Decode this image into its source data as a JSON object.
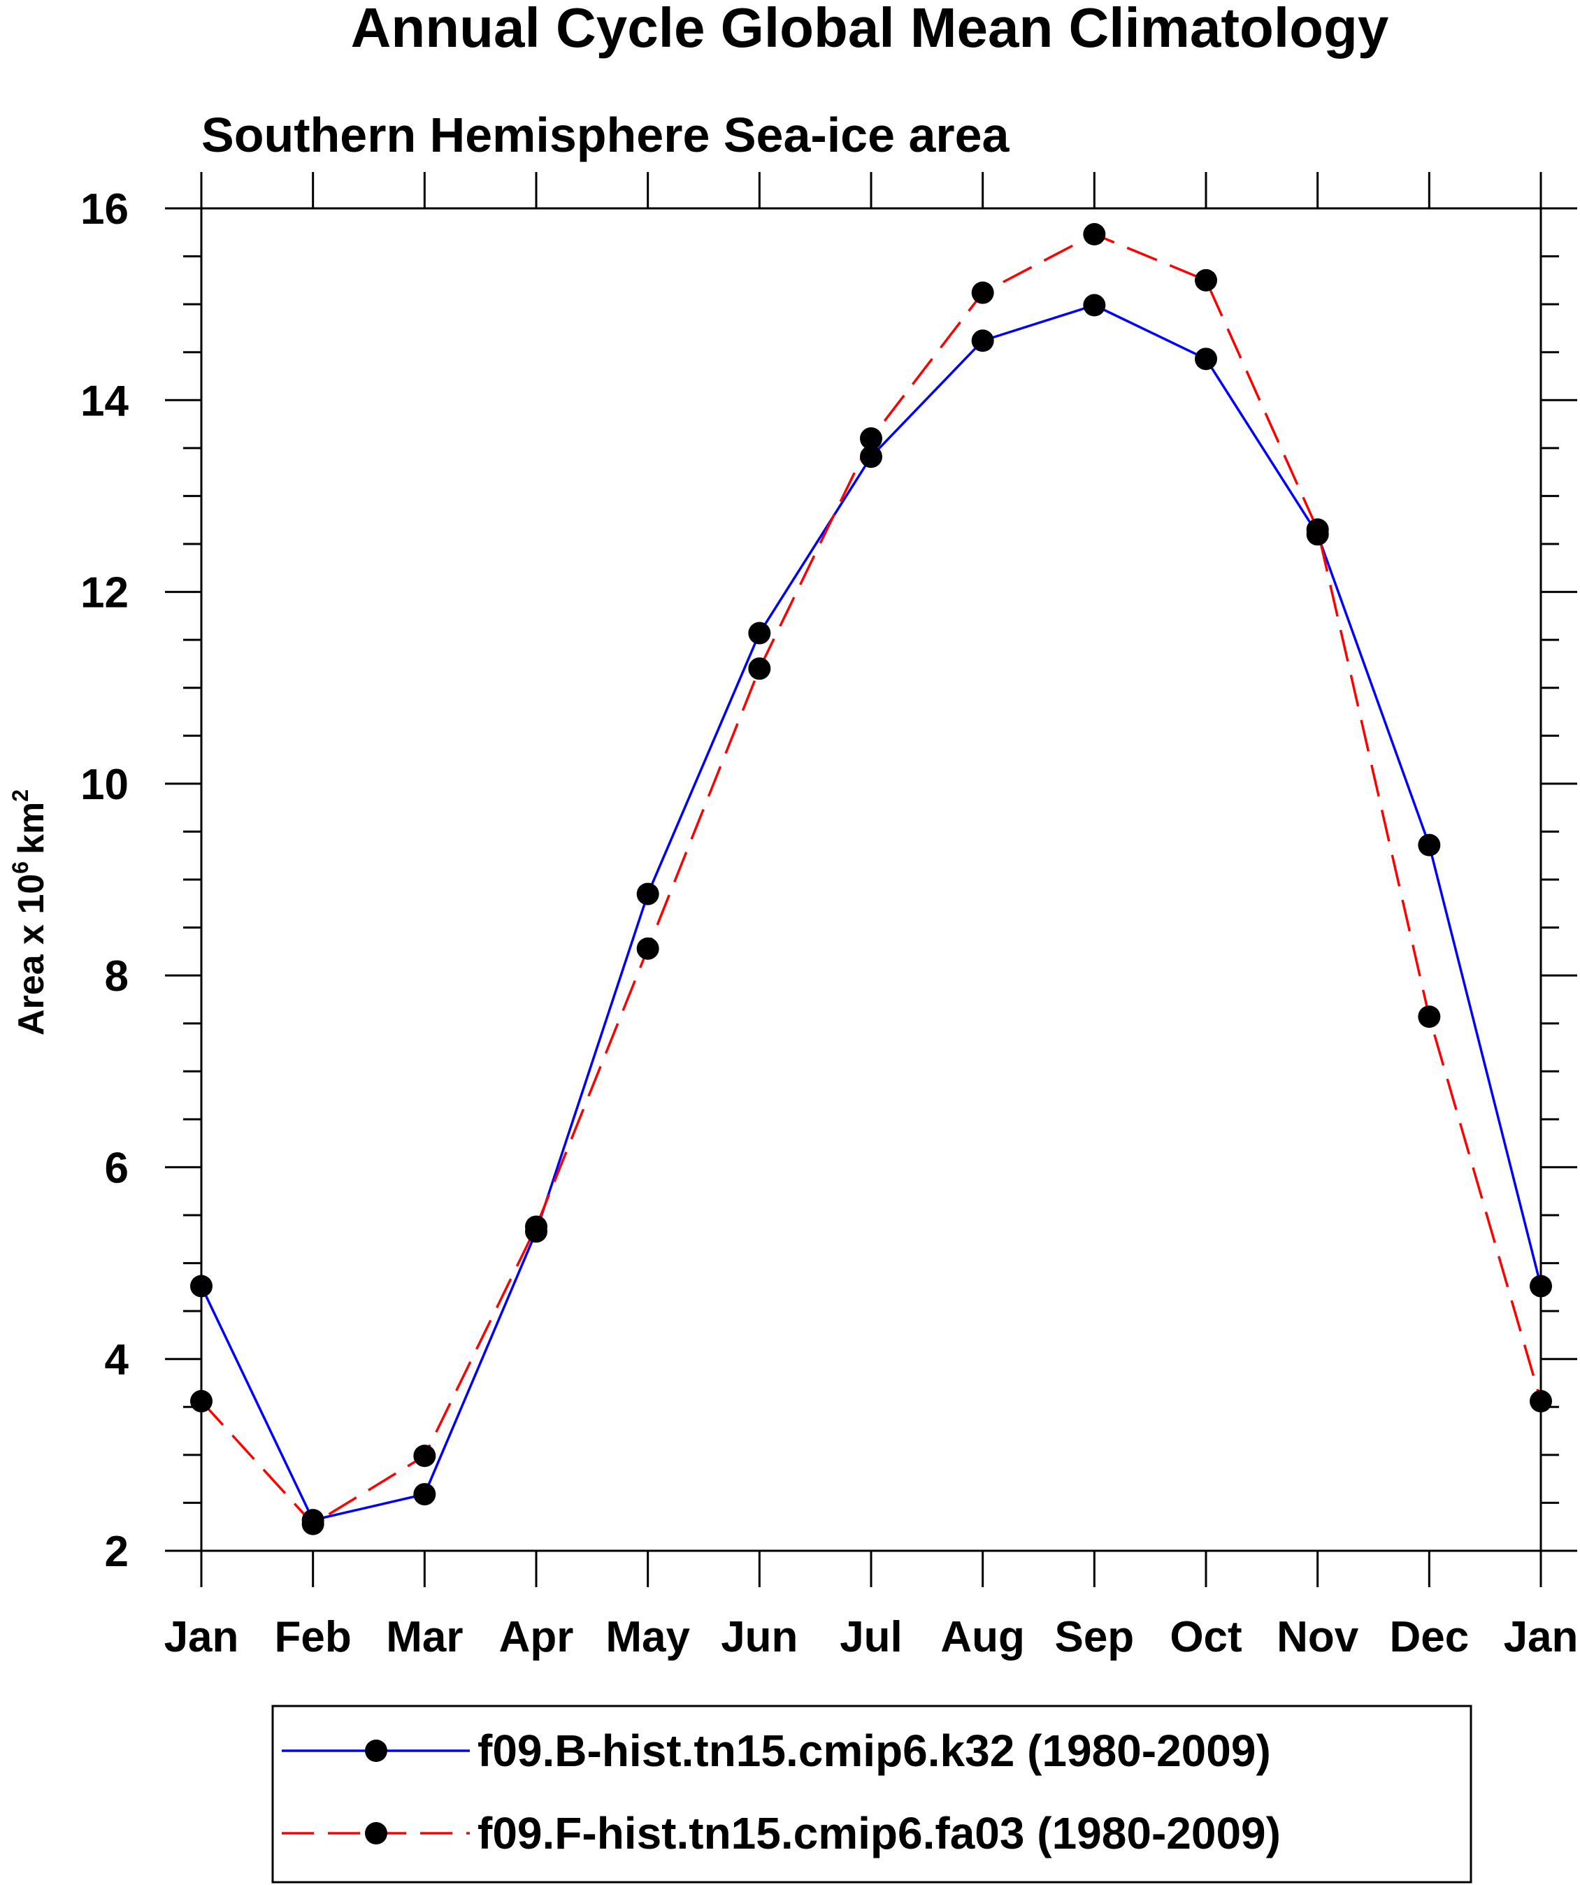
{
  "chart_data": {
    "type": "line",
    "title": "Annual Cycle Global Mean Climatology",
    "subtitle": "Southern Hemisphere Sea-ice area",
    "ylabel": "Area x 10",
    "ylabel_exponent": "6",
    "ylabel_unit": "km",
    "ylabel_unit_exponent": "2",
    "xlabel": "",
    "ylim": [
      2,
      16
    ],
    "yticks": [
      2,
      4,
      6,
      8,
      10,
      12,
      14,
      16
    ],
    "yminor_step": 0.5,
    "categories": [
      "Jan",
      "Feb",
      "Mar",
      "Apr",
      "May",
      "Jun",
      "Jul",
      "Aug",
      "Sep",
      "Oct",
      "Nov",
      "Dec",
      "Jan"
    ],
    "grid": false,
    "legend_position": "bottom",
    "series": [
      {
        "name": "f09.B-hist.tn15.cmip6.k32 (1980-2009)",
        "color": "#0000ff",
        "dash": "solid",
        "marker": "filled-circle",
        "values": [
          4.76,
          2.32,
          2.59,
          5.33,
          8.85,
          11.57,
          13.41,
          14.62,
          14.99,
          14.43,
          12.6,
          9.36,
          4.76
        ]
      },
      {
        "name": "f09.F-hist.tn15.cmip6.fa03 (1980-2009)",
        "color": "#ff0000",
        "dash": "dashed",
        "marker": "filled-circle",
        "values": [
          3.56,
          2.28,
          2.99,
          5.38,
          8.28,
          11.2,
          13.6,
          15.12,
          15.73,
          15.25,
          12.65,
          7.57,
          3.56
        ]
      }
    ]
  }
}
